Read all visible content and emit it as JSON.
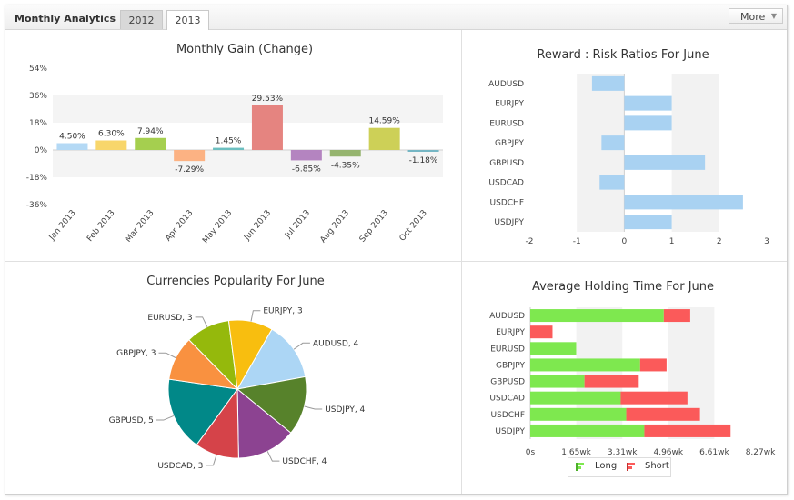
{
  "header": {
    "title": "Monthly Analytics",
    "tabs": [
      "2012",
      "2013"
    ],
    "active_tab": "2013",
    "more_label": "More"
  },
  "chart_data": [
    {
      "type": "bar",
      "title": "Monthly Gain (Change)",
      "categories": [
        "Jan 2013",
        "Feb 2013",
        "Mar 2013",
        "Apr 2013",
        "May 2013",
        "Jun 2013",
        "Jul 2013",
        "Aug 2013",
        "Sep 2013",
        "Oct 2013"
      ],
      "values": [
        4.5,
        6.3,
        7.94,
        -7.29,
        1.45,
        29.53,
        -6.85,
        -4.35,
        14.59,
        -1.18
      ],
      "value_labels": [
        "4.50%",
        "6.30%",
        "7.94%",
        "-7.29%",
        "1.45%",
        "29.53%",
        "-6.85%",
        "-4.35%",
        "14.59%",
        "-1.18%"
      ],
      "colors": [
        "#b4d9f5",
        "#f8d66b",
        "#a5cf4f",
        "#fcb283",
        "#6cbfc0",
        "#e58480",
        "#b484c0",
        "#95b46e",
        "#cdd057",
        "#75b6c4"
      ],
      "ylim": [
        -36,
        54
      ],
      "yticks": [
        "54%",
        "36%",
        "18%",
        "0%",
        "-18%",
        "-36%"
      ],
      "ytick_values": [
        54,
        36,
        18,
        0,
        -18,
        -36
      ]
    },
    {
      "type": "bar",
      "orientation": "horizontal",
      "title": "Reward : Risk Ratios For June",
      "categories": [
        "AUDUSD",
        "EURJPY",
        "EURUSD",
        "GBPJPY",
        "GBPUSD",
        "USDCAD",
        "USDCHF",
        "USDJPY"
      ],
      "values": [
        -0.68,
        1.0,
        1.0,
        -0.48,
        1.7,
        -0.52,
        2.5,
        1.0
      ],
      "xlim": [
        -2,
        3
      ],
      "xticks": [
        "-2",
        "-1",
        "0",
        "1",
        "2",
        "3"
      ],
      "xtick_values": [
        -2,
        -1,
        0,
        1,
        2,
        3
      ],
      "color": "#a9d2f2"
    },
    {
      "type": "pie",
      "title": "Currencies Popularity For June",
      "labels": [
        "AUDUSD, 4",
        "USDJPY, 4",
        "USDCHF, 4",
        "USDCAD, 3",
        "GBPUSD, 5",
        "GBPJPY, 3",
        "EURUSD, 3",
        "EURJPY, 3"
      ],
      "values": [
        4,
        4,
        4,
        3,
        5,
        3,
        3,
        3
      ],
      "colors": [
        "#acd6f5",
        "#57822b",
        "#8c4391",
        "#d54349",
        "#018888",
        "#f99140",
        "#95b90c",
        "#f8be0f"
      ]
    },
    {
      "type": "bar",
      "orientation": "horizontal",
      "stacked": true,
      "title": "Average Holding Time For June",
      "categories": [
        "AUDUSD",
        "EURJPY",
        "EURUSD",
        "GBPJPY",
        "GBPUSD",
        "USDCAD",
        "USDCHF",
        "USDJPY"
      ],
      "series": [
        {
          "name": "Long",
          "color": "#7ee84f",
          "values": [
            4.8,
            0,
            1.65,
            3.95,
            1.95,
            3.25,
            3.45,
            4.1
          ]
        },
        {
          "name": "Short",
          "color": "#fb5a5a",
          "values": [
            0.95,
            0.8,
            0,
            0.95,
            1.95,
            2.4,
            2.65,
            3.1
          ]
        }
      ],
      "xlim": [
        0,
        8.27
      ],
      "xticks": [
        "0s",
        "1.65wk",
        "3.31wk",
        "4.96wk",
        "6.61wk",
        "8.27wk"
      ],
      "xtick_values": [
        0,
        1.654,
        3.308,
        4.962,
        6.616,
        8.27
      ],
      "legend_position": "bottom"
    }
  ]
}
